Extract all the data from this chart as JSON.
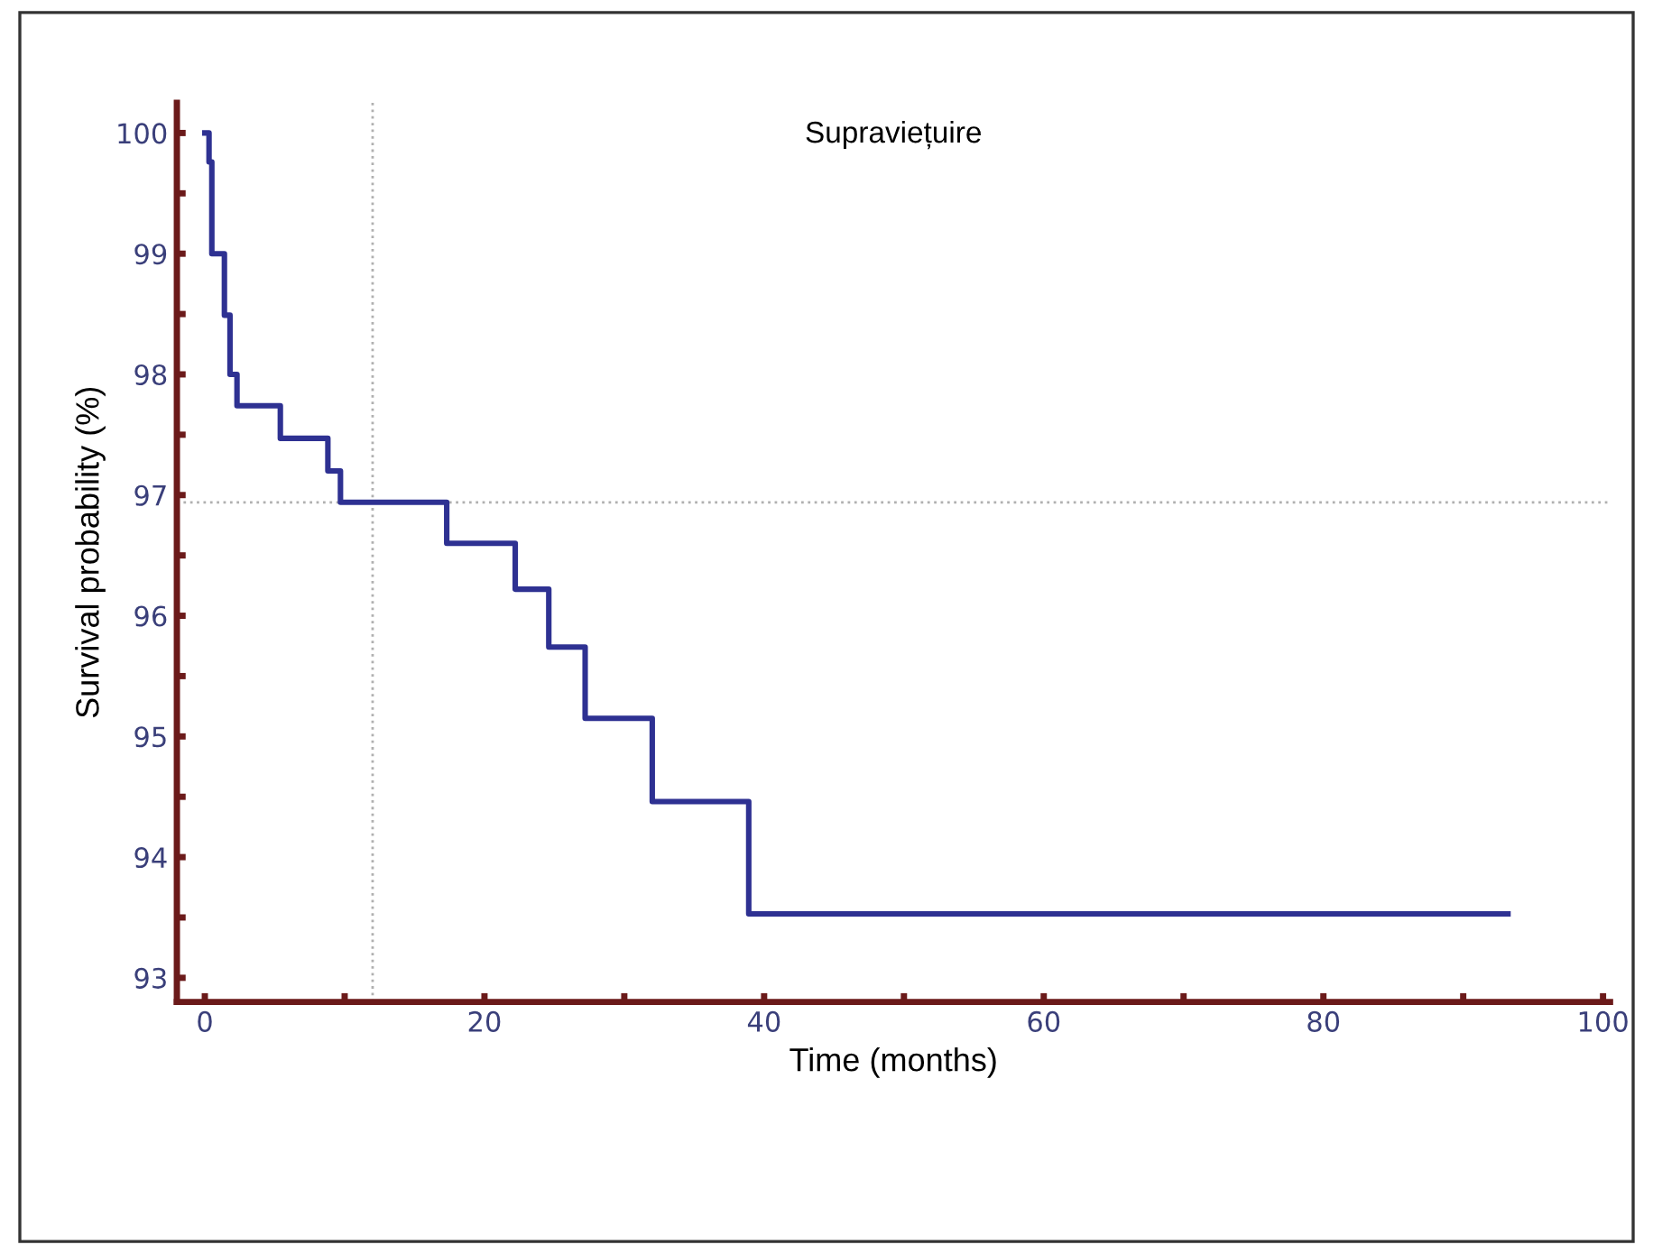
{
  "chart_data": {
    "type": "step",
    "title": "Supraviețuire",
    "xlabel": "Time (months)",
    "ylabel": "Survival probability (%)",
    "x": [
      0,
      0.3,
      0.5,
      1.4,
      1.8,
      2.3,
      5.4,
      8.8,
      9.7,
      17.3,
      22.2,
      24.6,
      27.2,
      32.0,
      38.9,
      93.2
    ],
    "series": [
      {
        "color": "#2e3192",
        "values": [
          100,
          99.76,
          99.0,
          98.49,
          98.0,
          97.74,
          97.47,
          97.2,
          96.94,
          96.6,
          96.22,
          95.74,
          95.15,
          94.46,
          93.53,
          93.53
        ]
      }
    ],
    "xlim": [
      -2,
      100.5
    ],
    "ylim": [
      92.8,
      100.25
    ],
    "xticks": [
      0,
      {
        "value": 10,
        "label": null
      },
      20,
      {
        "value": 30,
        "label": null
      },
      40,
      {
        "value": 50,
        "label": null
      },
      60,
      {
        "value": 70,
        "label": null
      },
      80,
      {
        "value": 90,
        "label": null
      },
      100
    ],
    "yticks": [
      93,
      {
        "value": 93.5,
        "label": null
      },
      94,
      {
        "value": 94.5,
        "label": null
      },
      95,
      {
        "value": 95.5,
        "label": null
      },
      96,
      {
        "value": 96.5,
        "label": null
      },
      97,
      {
        "value": 97.5,
        "label": null
      },
      98,
      {
        "value": 98.5,
        "label": null
      },
      99,
      {
        "value": 99.5,
        "label": null
      },
      100
    ],
    "ref_lines": [
      {
        "axis": "y",
        "value": 96.94,
        "color": "#b0b0b0",
        "line_style": "dotted"
      },
      {
        "axis": "x",
        "value": 12,
        "color": "#b0b0b0",
        "line_style": "dotted"
      }
    ],
    "line_style": "solid",
    "marker": "none",
    "grid": false,
    "legend": false
  }
}
